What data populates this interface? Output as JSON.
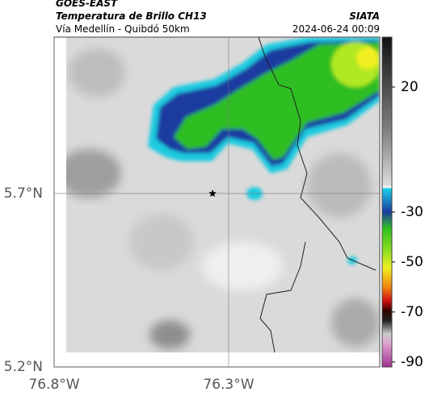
{
  "header": {
    "title": "GOES-EAST",
    "subtitle": "Temperatura de Brillo CH13",
    "route": "Vía Medellín - Quibdó 50km",
    "source": "SIATA",
    "timestamp": "2024-06-24 00:09"
  },
  "map": {
    "xlim": [
      -76.8,
      -75.867
    ],
    "ylim": [
      5.2,
      6.151
    ],
    "xticks": [
      {
        "value": -76.8,
        "label": "76.8°W"
      },
      {
        "value": -76.3,
        "label": "76.3°W"
      }
    ],
    "yticks": [
      {
        "value": 5.2,
        "label": "5.2°N"
      },
      {
        "value": 5.7,
        "label": "5.7°N"
      }
    ],
    "grid": true,
    "marker": {
      "lon": -76.346,
      "lat": 5.7
    }
  },
  "colorbar": {
    "clim": [
      -92,
      40
    ],
    "ticks": [
      20,
      -30,
      -50,
      -70,
      -90
    ]
  }
}
